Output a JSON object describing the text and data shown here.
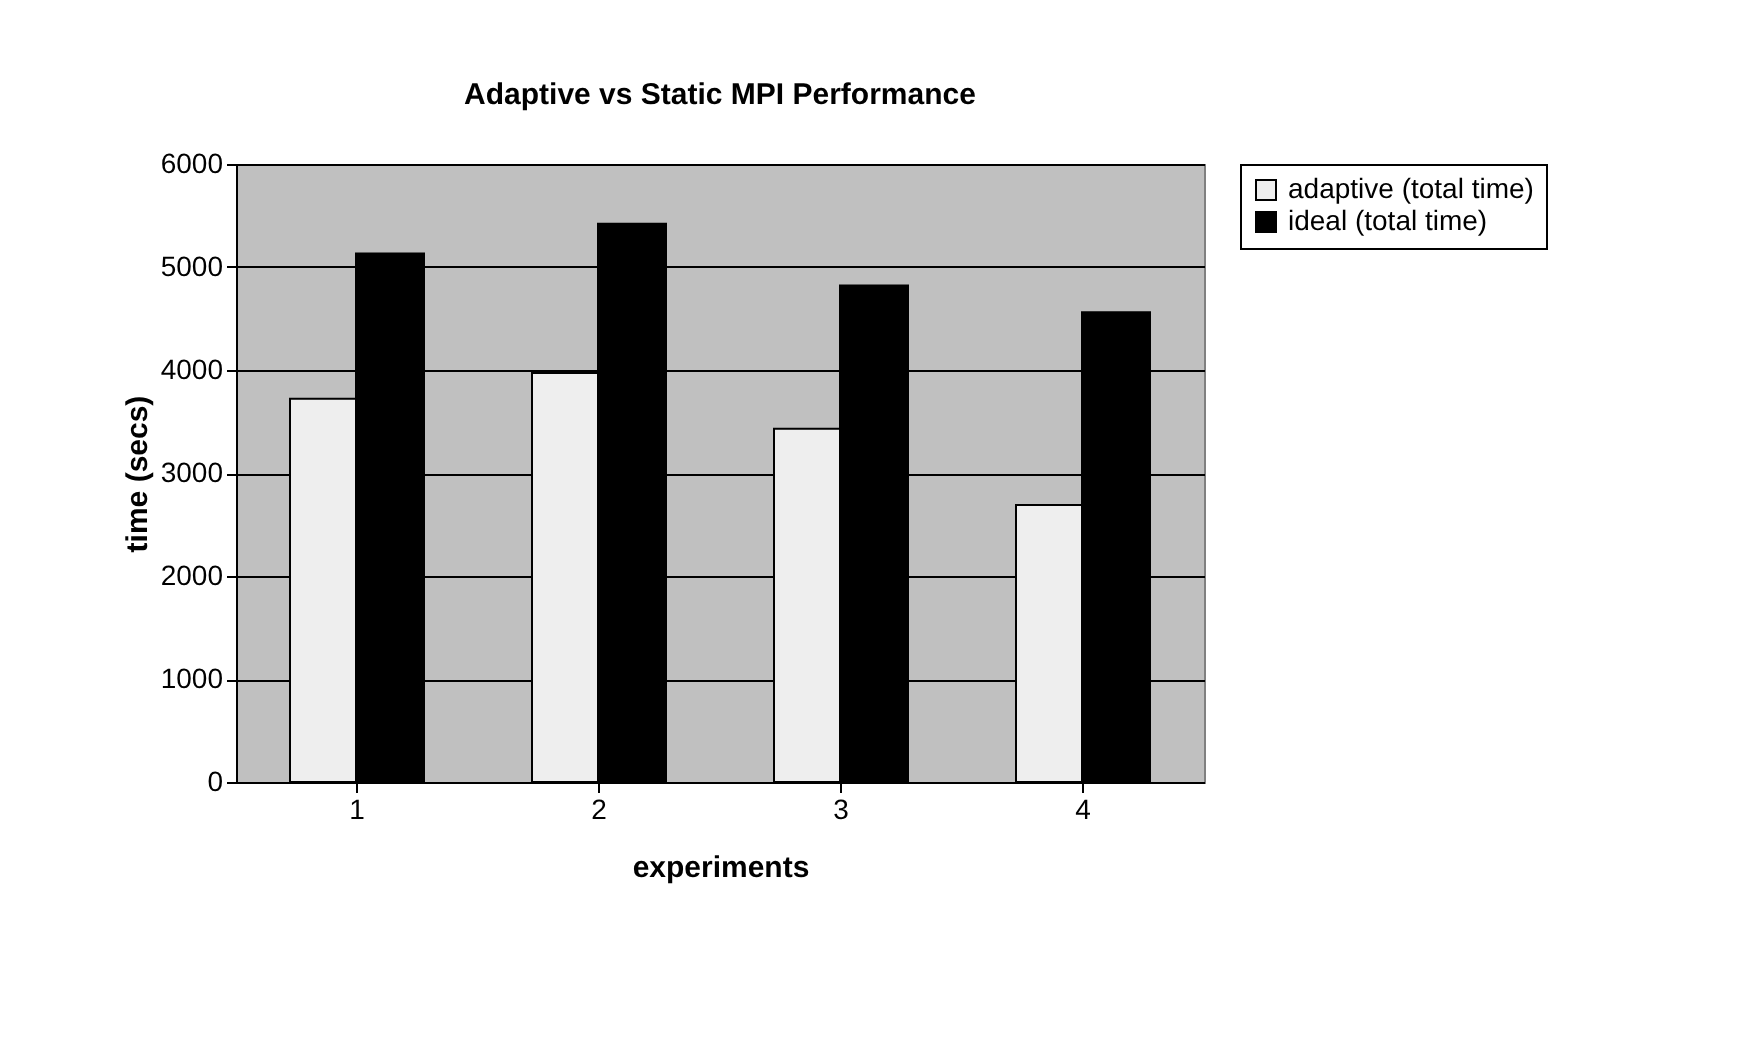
{
  "chart_data": {
    "type": "bar",
    "title": "Adaptive vs Static MPI Performance",
    "xlabel": "experiments",
    "ylabel": "time (secs)",
    "categories": [
      "1",
      "2",
      "3",
      "4"
    ],
    "series": [
      {
        "name": "adaptive (total time)",
        "color": "#eeeeee",
        "values": [
          3720,
          3970,
          3430,
          2690
        ]
      },
      {
        "name": "ideal (total time)",
        "color": "#000000",
        "values": [
          5130,
          5420,
          4820,
          4560
        ]
      }
    ],
    "ylim": [
      0,
      6000
    ],
    "yticks": [
      0,
      1000,
      2000,
      3000,
      4000,
      5000,
      6000
    ],
    "grid": "y",
    "legend": "right"
  }
}
